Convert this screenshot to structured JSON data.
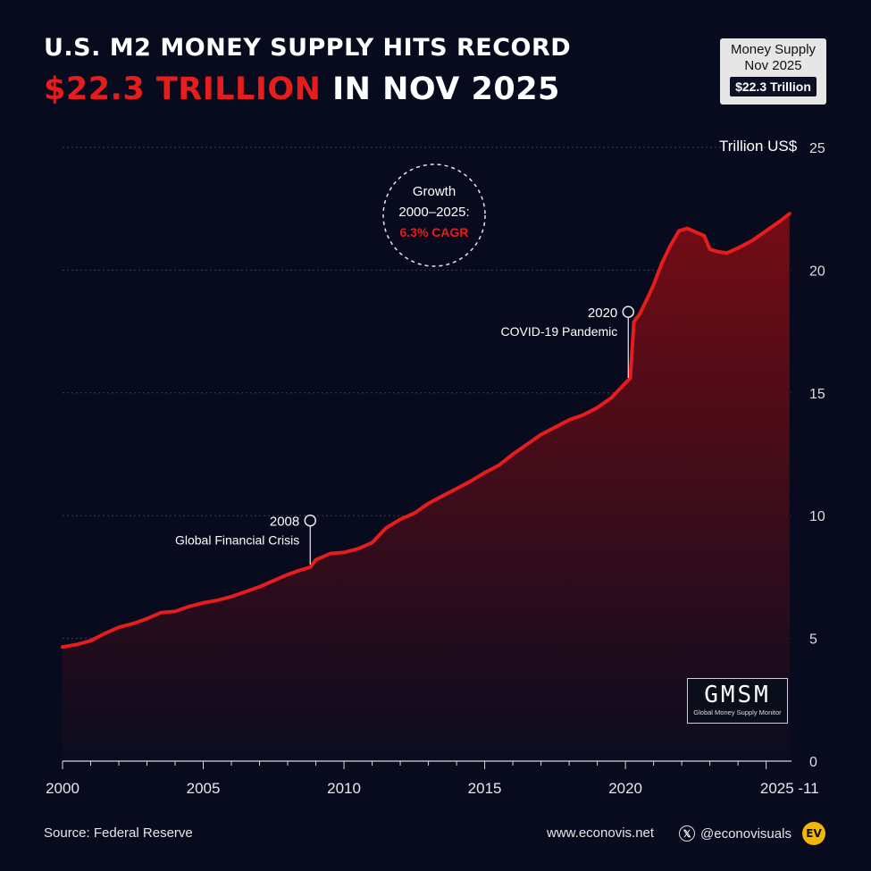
{
  "header": {
    "title_line1": "U.S. M2 MONEY SUPPLY HITS RECORD",
    "title_highlight": "$22.3 TRILLION",
    "title_rest": " IN NOV 2025"
  },
  "badge": {
    "line1": "Money Supply",
    "line2": "Nov 2025",
    "value": "$22.3 Trillion"
  },
  "growth": {
    "line1": "Growth",
    "line2": "2000–2025:",
    "cagr": "6.3% CAGR"
  },
  "logo": {
    "big": "GMSM",
    "small": "Global Money Supply Monitor"
  },
  "footer": {
    "source": "Source: Federal Reserve",
    "site": "www.econovis.net",
    "handle": "@econovisuals",
    "x_glyph": "𝕏",
    "ev_logo": "EV"
  },
  "colors": {
    "background": "#070b1d",
    "line": "#e51d1d",
    "accent": "#e51d1d",
    "area_top": "#7a0c14",
    "area_bottom": "#0b0c1f"
  },
  "chart_data": {
    "type": "area",
    "title": "",
    "xlabel": "",
    "ylabel": "Trillion US$",
    "xlim": [
      2000,
      2025.9
    ],
    "ylim": [
      0,
      25
    ],
    "y_ticks": [
      0,
      5,
      10,
      15,
      20,
      25
    ],
    "x_ticks": [
      {
        "value": 2000,
        "label": "2000"
      },
      {
        "value": 2005,
        "label": "2005"
      },
      {
        "value": 2010,
        "label": "2010"
      },
      {
        "value": 2015,
        "label": "2015"
      },
      {
        "value": 2020,
        "label": "2020"
      },
      {
        "value": 2025.83,
        "label": "2025 -11"
      }
    ],
    "grid": true,
    "series": [
      {
        "values": [
          [
            2000.0,
            4.65
          ],
          [
            2000.5,
            4.75
          ],
          [
            2001.0,
            4.9
          ],
          [
            2001.5,
            5.2
          ],
          [
            2002.0,
            5.45
          ],
          [
            2002.5,
            5.6
          ],
          [
            2003.0,
            5.8
          ],
          [
            2003.5,
            6.05
          ],
          [
            2004.0,
            6.1
          ],
          [
            2004.5,
            6.3
          ],
          [
            2005.0,
            6.45
          ],
          [
            2005.5,
            6.55
          ],
          [
            2006.0,
            6.7
          ],
          [
            2006.5,
            6.9
          ],
          [
            2007.0,
            7.1
          ],
          [
            2007.5,
            7.35
          ],
          [
            2008.0,
            7.6
          ],
          [
            2008.5,
            7.8
          ],
          [
            2008.8,
            7.9
          ],
          [
            2009.0,
            8.2
          ],
          [
            2009.5,
            8.45
          ],
          [
            2010.0,
            8.5
          ],
          [
            2010.5,
            8.65
          ],
          [
            2011.0,
            8.9
          ],
          [
            2011.5,
            9.5
          ],
          [
            2012.0,
            9.85
          ],
          [
            2012.5,
            10.1
          ],
          [
            2013.0,
            10.5
          ],
          [
            2013.5,
            10.8
          ],
          [
            2014.0,
            11.1
          ],
          [
            2014.5,
            11.4
          ],
          [
            2015.0,
            11.75
          ],
          [
            2015.5,
            12.05
          ],
          [
            2016.0,
            12.5
          ],
          [
            2016.5,
            12.9
          ],
          [
            2017.0,
            13.3
          ],
          [
            2017.5,
            13.6
          ],
          [
            2018.0,
            13.9
          ],
          [
            2018.5,
            14.1
          ],
          [
            2019.0,
            14.4
          ],
          [
            2019.5,
            14.8
          ],
          [
            2020.0,
            15.4
          ],
          [
            2020.17,
            15.6
          ],
          [
            2020.3,
            17.9
          ],
          [
            2020.5,
            18.2
          ],
          [
            2020.8,
            18.9
          ],
          [
            2021.0,
            19.4
          ],
          [
            2021.3,
            20.3
          ],
          [
            2021.6,
            21.0
          ],
          [
            2021.9,
            21.6
          ],
          [
            2022.2,
            21.7
          ],
          [
            2022.5,
            21.55
          ],
          [
            2022.8,
            21.4
          ],
          [
            2023.0,
            20.85
          ],
          [
            2023.3,
            20.75
          ],
          [
            2023.6,
            20.7
          ],
          [
            2024.0,
            20.9
          ],
          [
            2024.5,
            21.2
          ],
          [
            2025.0,
            21.6
          ],
          [
            2025.5,
            22.0
          ],
          [
            2025.83,
            22.3
          ]
        ]
      }
    ],
    "annotations": [
      {
        "year": "2008",
        "label": "Global Financial Crisis",
        "x": 2008.8,
        "y": 7.9,
        "marker_y": 9.8
      },
      {
        "year": "2020",
        "label": "COVID-19 Pandemic",
        "x": 2020.1,
        "y": 15.5,
        "marker_y": 18.3
      }
    ]
  }
}
